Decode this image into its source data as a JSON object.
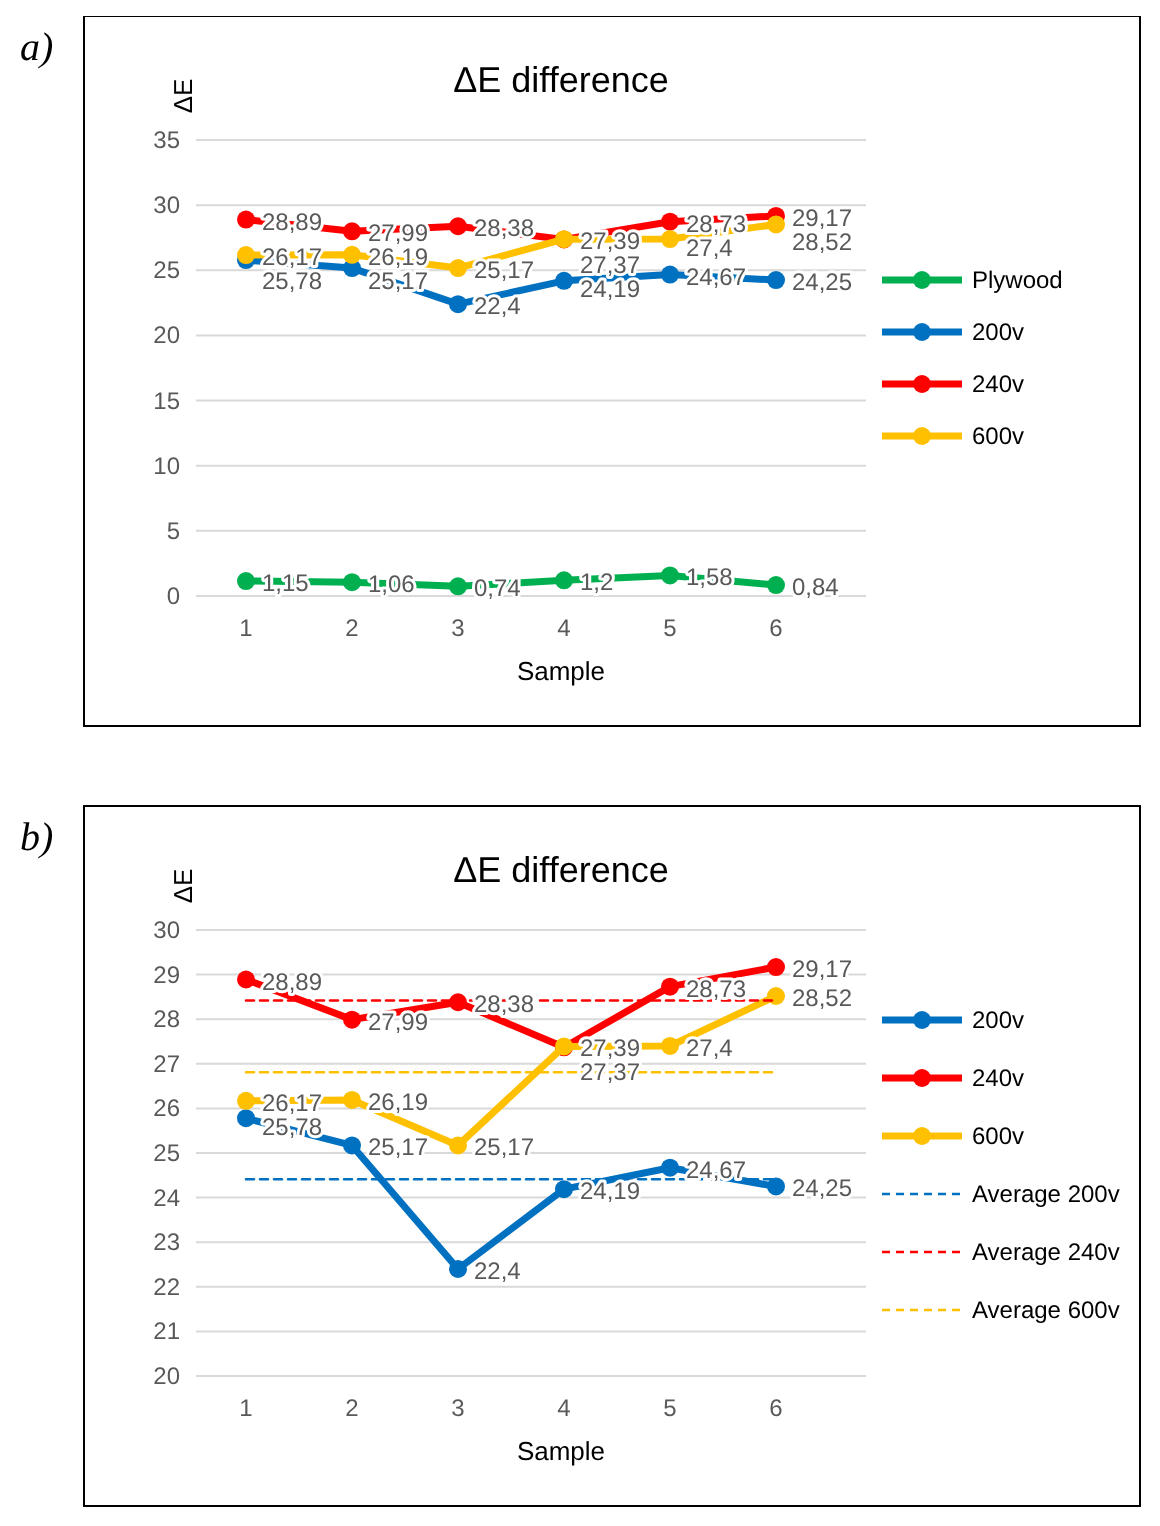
{
  "chart_data": [
    {
      "type": "line",
      "title": "ΔE difference",
      "xlabel": "Sample",
      "ylabel": "ΔE",
      "annotations": [
        "a)"
      ],
      "categories": [
        "1",
        "2",
        "3",
        "4",
        "5",
        "6"
      ],
      "ylim": [
        0,
        35
      ],
      "yticks": [
        0,
        5,
        10,
        15,
        20,
        25,
        30,
        35
      ],
      "grid": "y",
      "legend": "right",
      "marker": "circle",
      "series": [
        {
          "name": "Plywood",
          "color": "#00b050",
          "values": [
            1.15,
            1.06,
            0.74,
            1.2,
            1.58,
            0.84
          ],
          "value_labels": [
            "1,15",
            "1,06",
            "0,74",
            "1,2",
            "1,58",
            "0,84"
          ]
        },
        {
          "name": "200v",
          "color": "#0070c0",
          "values": [
            25.78,
            25.17,
            22.4,
            24.19,
            24.67,
            24.25
          ],
          "value_labels": [
            "25,78",
            "25,17",
            "22,4",
            "24,19",
            "24,67",
            "24,25"
          ]
        },
        {
          "name": "240v",
          "color": "#ff0000",
          "values": [
            28.89,
            27.99,
            28.38,
            27.37,
            28.73,
            29.17
          ],
          "value_labels": [
            "28,89",
            "27,99",
            "28,38",
            "27,37",
            "28,73",
            "29,17"
          ]
        },
        {
          "name": "600v",
          "color": "#ffc000",
          "values": [
            26.17,
            26.19,
            25.17,
            27.39,
            27.4,
            28.52
          ],
          "value_labels": [
            "26,17",
            "26,19",
            "25,17",
            "27,39",
            "27,4",
            "28,52"
          ]
        }
      ]
    },
    {
      "type": "line",
      "title": "ΔE difference",
      "xlabel": "Sample",
      "ylabel": "ΔE",
      "annotations": [
        "b)"
      ],
      "categories": [
        "1",
        "2",
        "3",
        "4",
        "5",
        "6"
      ],
      "ylim": [
        20,
        30
      ],
      "yticks": [
        20,
        21,
        22,
        23,
        24,
        25,
        26,
        27,
        28,
        29,
        30
      ],
      "grid": "y",
      "legend": "right",
      "marker": "circle",
      "series": [
        {
          "name": "200v",
          "color": "#0070c0",
          "values": [
            25.78,
            25.17,
            22.4,
            24.19,
            24.67,
            24.25
          ],
          "value_labels": [
            "25,78",
            "25,17",
            "22,4",
            "24,19",
            "24,67",
            "24,25"
          ]
        },
        {
          "name": "240v",
          "color": "#ff0000",
          "values": [
            28.89,
            27.99,
            28.38,
            27.37,
            28.73,
            29.17
          ],
          "value_labels": [
            "28,89",
            "27,99",
            "28,38",
            "27,37",
            "28,73",
            "29,17"
          ]
        },
        {
          "name": "600v",
          "color": "#ffc000",
          "values": [
            26.17,
            26.19,
            25.17,
            27.39,
            27.4,
            28.52
          ],
          "value_labels": [
            "26,17",
            "26,19",
            "25,17",
            "27,39",
            "27,4",
            "28,52"
          ]
        },
        {
          "name": "Average 200v",
          "color": "#0070c0",
          "line_style": "dashed",
          "marker": "none",
          "values": [
            24.41,
            24.41,
            24.41,
            24.41,
            24.41,
            24.41
          ]
        },
        {
          "name": "Average 240v",
          "color": "#ff0000",
          "line_style": "dashed",
          "marker": "none",
          "values": [
            28.42,
            28.42,
            28.42,
            28.42,
            28.42,
            28.42
          ]
        },
        {
          "name": "Average 600v",
          "color": "#ffc000",
          "line_style": "dashed",
          "marker": "none",
          "values": [
            26.81,
            26.81,
            26.81,
            26.81,
            26.81,
            26.81
          ]
        }
      ]
    }
  ]
}
